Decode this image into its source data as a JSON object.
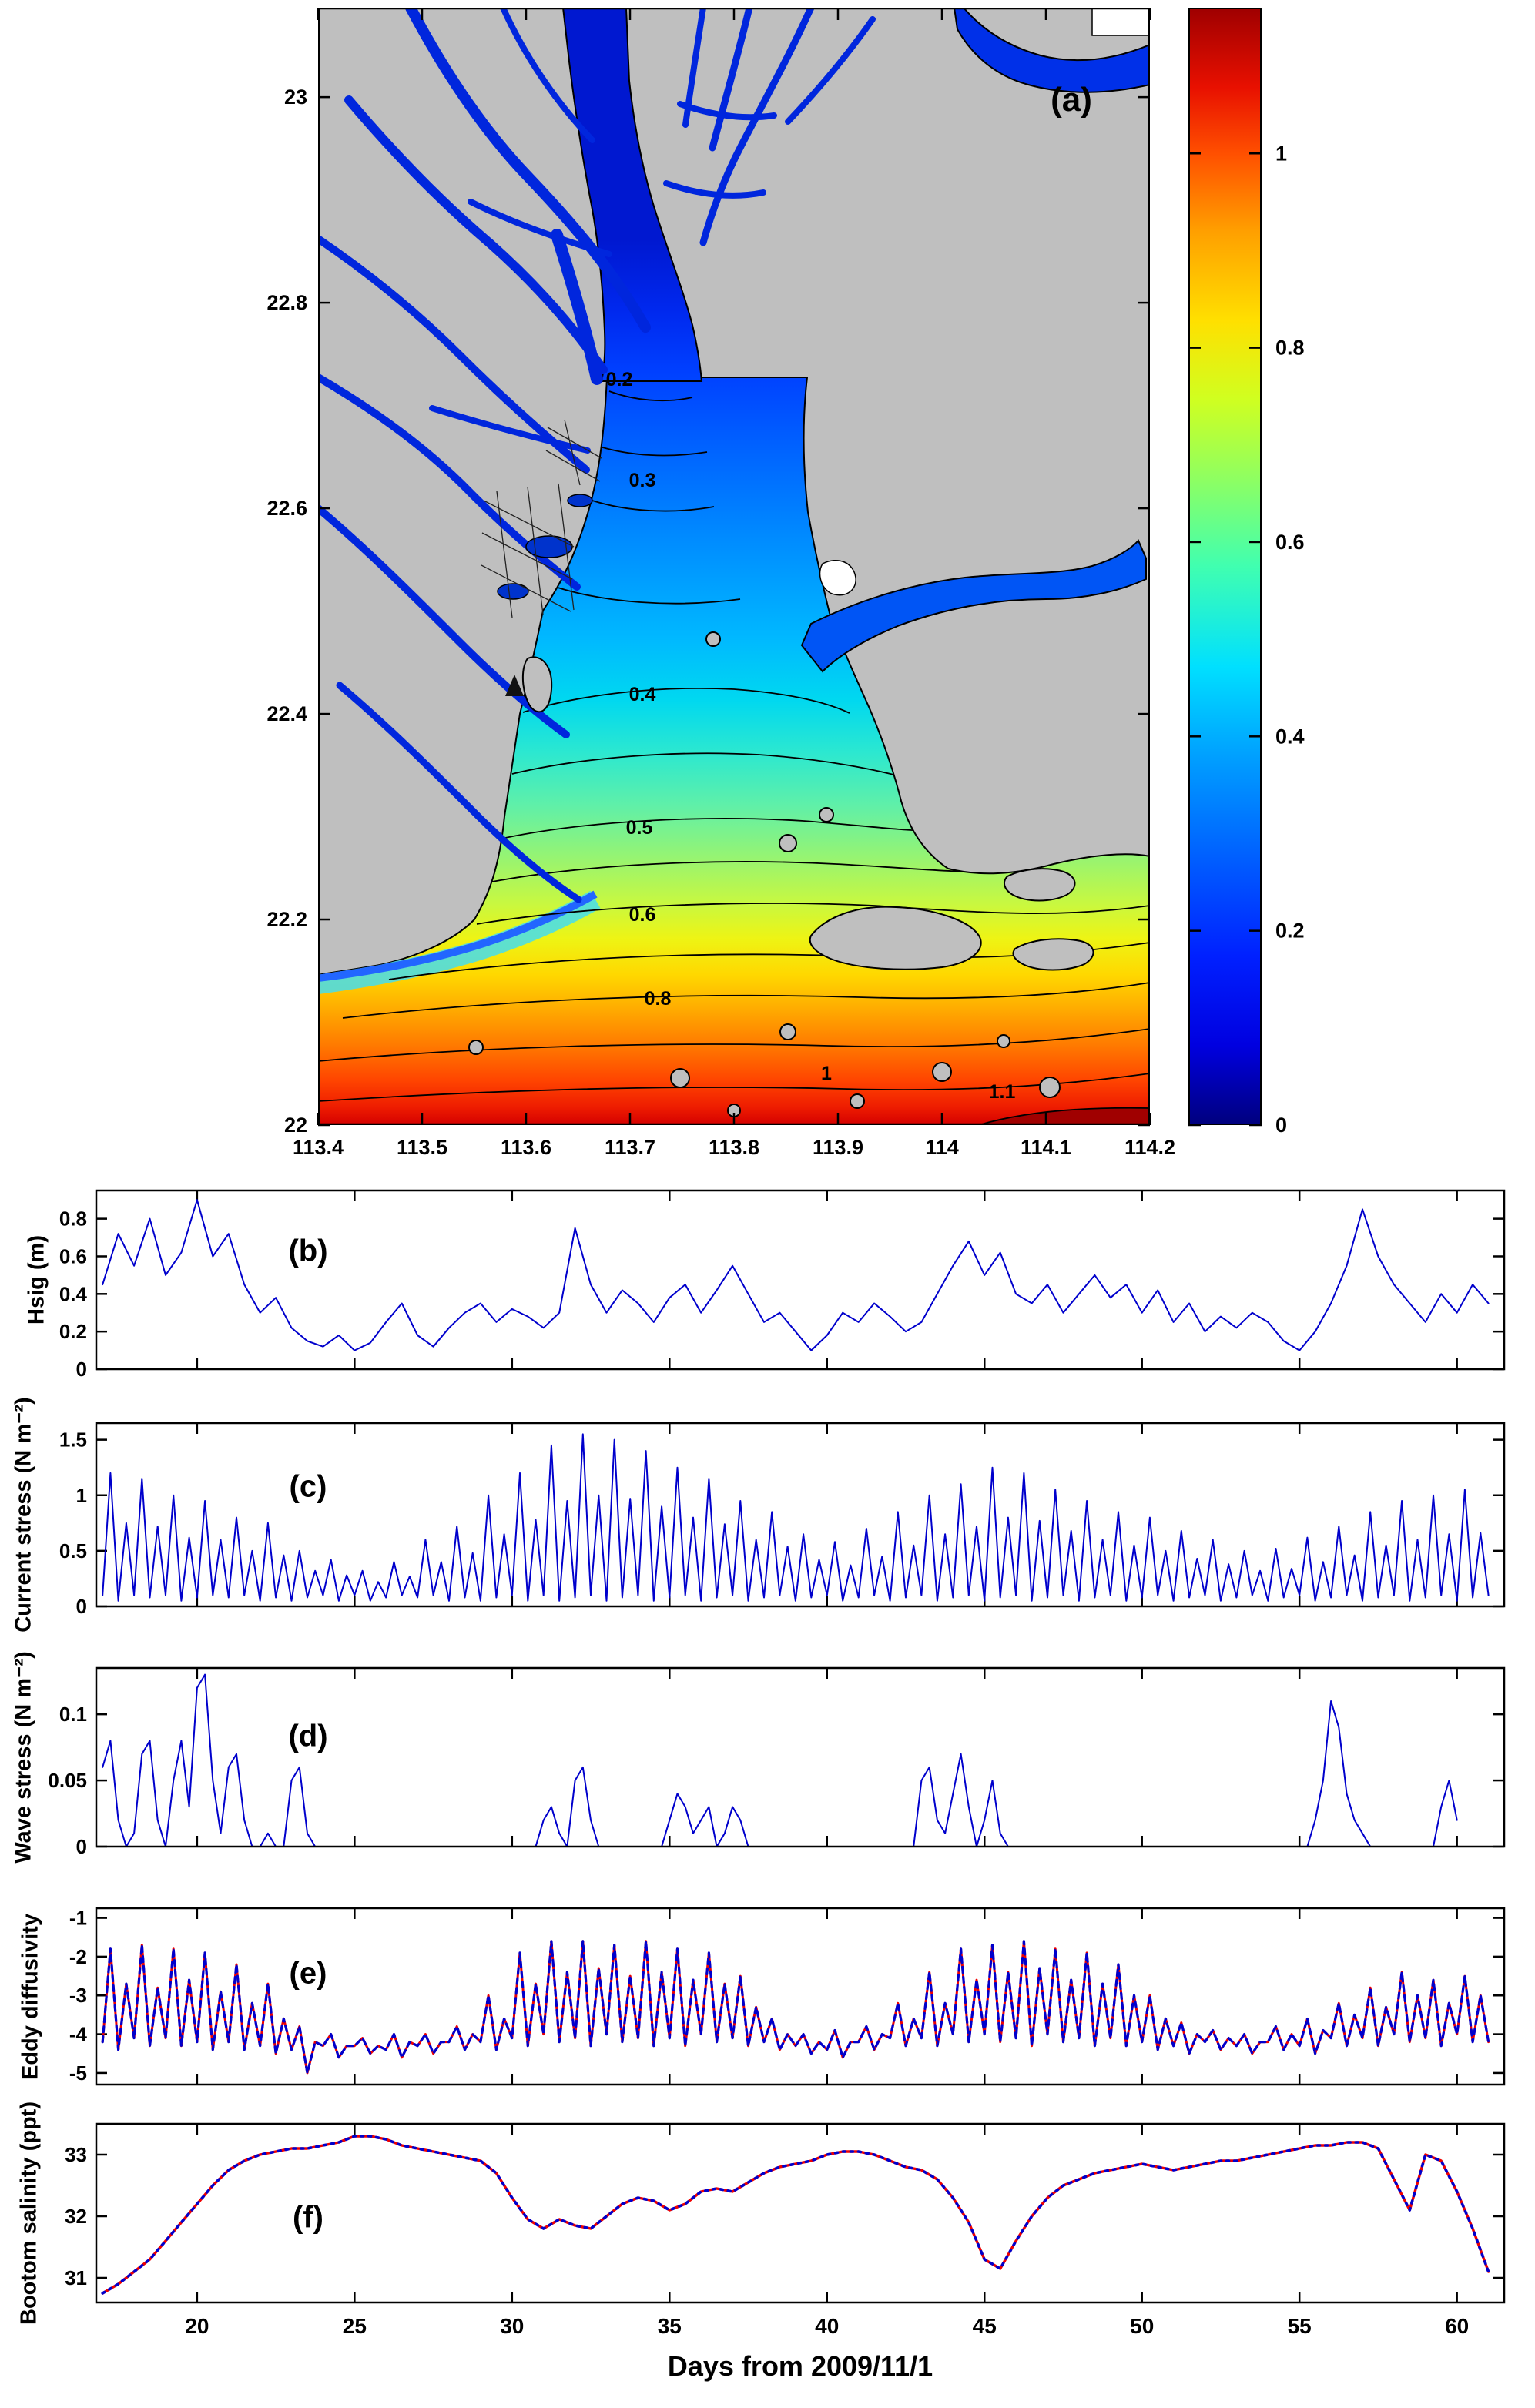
{
  "figure": {
    "xlabel": "Days from 2009/11/1",
    "land_color": "#bfbfbf",
    "contour_label_color": "#ff00ee",
    "line_blue": "#0000cc",
    "line_red": "#ee0000"
  },
  "chart_data": [
    {
      "id": "a",
      "type": "heatmap",
      "panel_label": "(a)",
      "description": "Map of Pearl River Estuary, filled contours of a 0-1.1 quantity (jet colormap), gray land, magenta contour labels",
      "xlim": [
        113.4,
        114.2
      ],
      "ylim": [
        22,
        23.087
      ],
      "xticks": [
        113.4,
        113.5,
        113.6,
        113.7,
        113.8,
        113.9,
        114,
        114.1,
        114.2
      ],
      "xtick_labels": [
        "113.4",
        "113.5",
        "113.6",
        "113.7",
        "113.8",
        "113.9",
        "114",
        "114.1",
        "114.2"
      ],
      "yticks": [
        22,
        22.2,
        22.4,
        22.6,
        22.8,
        23
      ],
      "ytick_labels": [
        "22",
        "22.2",
        "22.4",
        "22.6",
        "22.8",
        "23"
      ],
      "contour_labels": [
        {
          "value": "0.2",
          "x": 391,
          "y": 491
        },
        {
          "value": "0.3",
          "x": 421,
          "y": 622
        },
        {
          "value": "0.4",
          "x": 421,
          "y": 900
        },
        {
          "value": "0.5",
          "x": 417,
          "y": 1073
        },
        {
          "value": "0.6",
          "x": 421,
          "y": 1186
        },
        {
          "value": "0.8",
          "x": 441,
          "y": 1295
        },
        {
          "value": "1",
          "x": 660,
          "y": 1392
        },
        {
          "value": "1.1",
          "x": 888,
          "y": 1416
        }
      ],
      "colorbar": {
        "range": [
          0,
          1.15
        ],
        "ticks": [
          0,
          0.2,
          0.4,
          0.6,
          0.8,
          1
        ],
        "tick_labels": [
          "0",
          "0.2",
          "0.4",
          "0.6",
          "0.8",
          "1"
        ],
        "stops": [
          [
            "#00007f",
            0
          ],
          [
            "#0000e0",
            0.07
          ],
          [
            "#0020ff",
            0.15
          ],
          [
            "#0060ff",
            0.24
          ],
          [
            "#00a0ff",
            0.33
          ],
          [
            "#00e0ff",
            0.41
          ],
          [
            "#40ffb0",
            0.5
          ],
          [
            "#90ff60",
            0.58
          ],
          [
            "#d0ff20",
            0.65
          ],
          [
            "#ffe000",
            0.72
          ],
          [
            "#ffa000",
            0.8
          ],
          [
            "#ff5000",
            0.87
          ],
          [
            "#e81000",
            0.93
          ],
          [
            "#a00000",
            1
          ]
        ]
      }
    },
    {
      "id": "b",
      "type": "line",
      "panel_label": "(b)",
      "ylabel": "Hsig (m)",
      "xlim": [
        16.8,
        61.5
      ],
      "ylim": [
        0,
        0.95
      ],
      "yticks": [
        0,
        0.2,
        0.4,
        0.6,
        0.8
      ],
      "ytick_labels": [
        "0",
        "0.2",
        "0.4",
        "0.6",
        "0.8"
      ],
      "xticks": [
        20,
        25,
        30,
        35,
        40,
        45,
        50,
        55,
        60
      ],
      "show_xticklabels": false,
      "series": [
        {
          "name": "significant-wave-height",
          "color": "#0000cc",
          "width": 2,
          "dash": "",
          "x0": 17,
          "dx": 0.5,
          "values": [
            0.45,
            0.72,
            0.55,
            0.8,
            0.5,
            0.62,
            0.9,
            0.6,
            0.72,
            0.45,
            0.3,
            0.38,
            0.22,
            0.15,
            0.12,
            0.18,
            0.1,
            0.14,
            0.25,
            0.35,
            0.18,
            0.12,
            0.22,
            0.3,
            0.35,
            0.25,
            0.32,
            0.28,
            0.22,
            0.3,
            0.75,
            0.45,
            0.3,
            0.42,
            0.35,
            0.25,
            0.38,
            0.45,
            0.3,
            0.42,
            0.55,
            0.4,
            0.25,
            0.3,
            0.2,
            0.1,
            0.18,
            0.3,
            0.25,
            0.35,
            0.28,
            0.2,
            0.25,
            0.4,
            0.55,
            0.68,
            0.5,
            0.62,
            0.4,
            0.35,
            0.45,
            0.3,
            0.4,
            0.5,
            0.38,
            0.45,
            0.3,
            0.42,
            0.25,
            0.35,
            0.2,
            0.28,
            0.22,
            0.3,
            0.25,
            0.15,
            0.1,
            0.2,
            0.35,
            0.55,
            0.85,
            0.6,
            0.45,
            0.35,
            0.25,
            0.4,
            0.3,
            0.45,
            0.35
          ]
        }
      ]
    },
    {
      "id": "c",
      "type": "line",
      "panel_label": "(c)",
      "ylabel": "Current stress (N m⁻²)",
      "xlim": [
        16.8,
        61.5
      ],
      "ylim": [
        0,
        1.65
      ],
      "yticks": [
        0,
        0.5,
        1,
        1.5
      ],
      "ytick_labels": [
        "0",
        "0.5",
        "1",
        "1.5"
      ],
      "xticks": [
        20,
        25,
        30,
        35,
        40,
        45,
        50,
        55,
        60
      ],
      "show_xticklabels": false,
      "series": [
        {
          "name": "bottom-current-stress",
          "color": "#0000cc",
          "width": 2,
          "dash": "",
          "x0": 17,
          "dx": 0.25,
          "values": [
            0.1,
            1.2,
            0.05,
            0.75,
            0.1,
            1.15,
            0.08,
            0.72,
            0.1,
            1.0,
            0.05,
            0.62,
            0.08,
            0.95,
            0.1,
            0.6,
            0.08,
            0.8,
            0.1,
            0.5,
            0.05,
            0.75,
            0.08,
            0.46,
            0.05,
            0.5,
            0.08,
            0.32,
            0.1,
            0.42,
            0.05,
            0.28,
            0.1,
            0.32,
            0.05,
            0.22,
            0.08,
            0.4,
            0.1,
            0.27,
            0.08,
            0.6,
            0.1,
            0.4,
            0.05,
            0.72,
            0.08,
            0.48,
            0.05,
            1.0,
            0.08,
            0.65,
            0.1,
            1.2,
            0.05,
            0.78,
            0.1,
            1.45,
            0.05,
            0.95,
            0.08,
            1.55,
            0.1,
            1.0,
            0.05,
            1.5,
            0.08,
            0.97,
            0.1,
            1.4,
            0.05,
            0.9,
            0.08,
            1.25,
            0.1,
            0.8,
            0.05,
            1.15,
            0.08,
            0.74,
            0.1,
            0.95,
            0.05,
            0.6,
            0.08,
            0.85,
            0.1,
            0.54,
            0.05,
            0.65,
            0.08,
            0.42,
            0.1,
            0.58,
            0.05,
            0.37,
            0.08,
            0.7,
            0.1,
            0.45,
            0.05,
            0.85,
            0.08,
            0.55,
            0.1,
            1.0,
            0.05,
            0.65,
            0.08,
            1.1,
            0.1,
            0.72,
            0.05,
            1.25,
            0.08,
            0.8,
            0.1,
            1.2,
            0.05,
            0.77,
            0.08,
            1.05,
            0.1,
            0.68,
            0.05,
            0.95,
            0.08,
            0.6,
            0.1,
            0.85,
            0.05,
            0.55,
            0.08,
            0.8,
            0.1,
            0.5,
            0.05,
            0.68,
            0.08,
            0.43,
            0.1,
            0.6,
            0.05,
            0.38,
            0.08,
            0.5,
            0.1,
            0.32,
            0.05,
            0.52,
            0.08,
            0.34,
            0.1,
            0.62,
            0.05,
            0.4,
            0.08,
            0.72,
            0.1,
            0.46,
            0.05,
            0.85,
            0.08,
            0.55,
            0.1,
            0.95,
            0.05,
            0.6,
            0.08,
            1.0,
            0.1,
            0.65,
            0.05,
            1.05,
            0.08,
            0.66,
            0.1
          ]
        }
      ]
    },
    {
      "id": "d",
      "type": "line",
      "panel_label": "(d)",
      "ylabel": "Wave stress (N m⁻²)",
      "xlim": [
        16.8,
        61.5
      ],
      "ylim": [
        0,
        0.135
      ],
      "yticks": [
        0,
        0.05,
        0.1
      ],
      "ytick_labels": [
        "0",
        "0.05",
        "0.1"
      ],
      "xticks": [
        20,
        25,
        30,
        35,
        40,
        45,
        50,
        55,
        60
      ],
      "show_xticklabels": false,
      "series": [
        {
          "name": "wave-bottom-stress",
          "color": "#0000cc",
          "width": 2,
          "dash": "",
          "x0": 17,
          "dx": 0.25,
          "values": [
            0.06,
            0.08,
            0.02,
            0,
            0.01,
            0.07,
            0.08,
            0.02,
            0,
            0.05,
            0.08,
            0.03,
            0.12,
            0.13,
            0.05,
            0.01,
            0.06,
            0.07,
            0.02,
            0,
            0,
            0.01,
            0,
            0,
            0.05,
            0.06,
            0.01,
            0,
            0,
            0,
            0,
            0,
            0,
            0,
            0,
            0,
            0,
            0,
            0,
            0,
            0,
            0,
            0,
            0,
            0,
            0,
            0,
            0,
            0,
            0,
            0,
            0,
            0,
            0,
            0,
            0,
            0.02,
            0.03,
            0.01,
            0,
            0.05,
            0.06,
            0.02,
            0,
            0,
            0,
            0,
            0,
            0,
            0,
            0,
            0,
            0.02,
            0.04,
            0.03,
            0.01,
            0.02,
            0.03,
            0,
            0.01,
            0.03,
            0.02,
            0,
            0,
            0,
            0,
            0,
            0,
            0,
            0,
            0,
            0,
            0,
            0,
            0,
            0,
            0,
            0,
            0,
            0,
            0,
            0,
            0,
            0,
            0.05,
            0.06,
            0.02,
            0.01,
            0.04,
            0.07,
            0.03,
            0,
            0.02,
            0.05,
            0.01,
            0,
            0,
            0,
            0,
            0,
            0,
            0,
            0,
            0,
            0,
            0,
            0,
            0,
            0,
            0,
            0,
            0,
            0,
            0,
            0,
            0,
            0,
            0,
            0,
            0,
            0,
            0,
            0,
            0,
            0,
            0,
            0,
            0,
            0,
            0,
            0,
            0,
            0,
            0,
            0.02,
            0.05,
            0.11,
            0.09,
            0.04,
            0.02,
            0.01,
            0,
            0,
            0,
            0,
            0,
            0,
            0,
            0,
            0,
            0.03,
            0.05,
            0.02
          ]
        }
      ]
    },
    {
      "id": "e",
      "type": "line",
      "panel_label": "(e)",
      "ylabel": "Eddy diffusivity",
      "xlim": [
        16.8,
        61.5
      ],
      "ylim": [
        -5.3,
        -0.75
      ],
      "yticks": [
        -5,
        -4,
        -3,
        -2,
        -1
      ],
      "ytick_labels": [
        "-5",
        "-4",
        "-3",
        "-2",
        "-1"
      ],
      "xticks": [
        20,
        25,
        30,
        35,
        40,
        45,
        50,
        55,
        60
      ],
      "show_xticklabels": false,
      "series": [
        {
          "name": "eddy-diffusivity-red-solid",
          "color": "#ee0000",
          "width": 3,
          "dash": "",
          "x0": 17,
          "dx": 0.25,
          "values": [
            -4.2,
            -1.8,
            -4.4,
            -2.7,
            -4.1,
            -1.7,
            -4.3,
            -2.8,
            -4.1,
            -1.8,
            -4.3,
            -2.6,
            -4.2,
            -1.9,
            -4.4,
            -2.9,
            -4.2,
            -2.2,
            -4.4,
            -3.2,
            -4.3,
            -2.7,
            -4.5,
            -3.6,
            -4.4,
            -3.8,
            -5.0,
            -4.2,
            -4.3,
            -4.0,
            -4.6,
            -4.3,
            -4.3,
            -4.1,
            -4.5,
            -4.3,
            -4.4,
            -4.0,
            -4.6,
            -4.2,
            -4.3,
            -4.0,
            -4.5,
            -4.2,
            -4.2,
            -3.8,
            -4.4,
            -4.0,
            -4.2,
            -3.0,
            -4.4,
            -3.6,
            -4.1,
            -1.9,
            -4.3,
            -2.7,
            -4.0,
            -1.6,
            -4.2,
            -2.4,
            -4.1,
            -1.6,
            -4.3,
            -2.3,
            -4.0,
            -1.7,
            -4.2,
            -2.5,
            -4.1,
            -1.6,
            -4.3,
            -2.4,
            -4.1,
            -1.8,
            -4.3,
            -2.6,
            -4.0,
            -1.9,
            -4.2,
            -2.7,
            -4.1,
            -2.5,
            -4.3,
            -3.3,
            -4.2,
            -3.6,
            -4.4,
            -4.0,
            -4.3,
            -4.0,
            -4.5,
            -4.2,
            -4.4,
            -3.9,
            -4.6,
            -4.2,
            -4.2,
            -3.8,
            -4.4,
            -4.0,
            -4.1,
            -3.2,
            -4.3,
            -3.6,
            -4.1,
            -2.4,
            -4.3,
            -3.2,
            -4.0,
            -1.8,
            -4.2,
            -2.6,
            -4.0,
            -1.7,
            -4.2,
            -2.4,
            -4.1,
            -1.6,
            -4.3,
            -2.3,
            -4.0,
            -1.8,
            -4.2,
            -2.6,
            -4.1,
            -1.9,
            -4.3,
            -2.7,
            -4.1,
            -2.2,
            -4.3,
            -3.0,
            -4.2,
            -3.0,
            -4.4,
            -3.6,
            -4.3,
            -3.7,
            -4.5,
            -4.0,
            -4.2,
            -3.9,
            -4.4,
            -4.1,
            -4.3,
            -4.0,
            -4.5,
            -4.2,
            -4.2,
            -3.8,
            -4.4,
            -4.0,
            -4.3,
            -3.6,
            -4.5,
            -3.9,
            -4.1,
            -3.2,
            -4.3,
            -3.5,
            -4.1,
            -2.8,
            -4.3,
            -3.3,
            -4.0,
            -2.4,
            -4.2,
            -3.0,
            -4.1,
            -2.6,
            -4.3,
            -3.2,
            -4.0,
            -2.5,
            -4.2,
            -3.0,
            -4.2
          ]
        },
        {
          "name": "eddy-diffusivity-blue-dashed",
          "color": "#0000cc",
          "width": 3.2,
          "dash": "7 6",
          "x0": 17,
          "dx": 0.25,
          "same_as": 0
        }
      ]
    },
    {
      "id": "f",
      "type": "line",
      "panel_label": "(f)",
      "ylabel": "Bootom salinity (ppt)",
      "xlim": [
        16.8,
        61.5
      ],
      "ylim": [
        30.6,
        33.5
      ],
      "yticks": [
        31,
        32,
        33
      ],
      "ytick_labels": [
        "31",
        "32",
        "33"
      ],
      "xticks": [
        20,
        25,
        30,
        35,
        40,
        45,
        50,
        55,
        60
      ],
      "xtick_labels": [
        "20",
        "25",
        "30",
        "35",
        "40",
        "45",
        "50",
        "55",
        "60"
      ],
      "show_xticklabels": true,
      "series": [
        {
          "name": "bottom-salinity-red-solid",
          "color": "#ee0000",
          "width": 3.4,
          "dash": "",
          "x0": 17,
          "dx": 0.5,
          "values": [
            30.75,
            30.9,
            31.1,
            31.3,
            31.6,
            31.9,
            32.2,
            32.5,
            32.75,
            32.9,
            33.0,
            33.05,
            33.1,
            33.1,
            33.15,
            33.2,
            33.3,
            33.3,
            33.25,
            33.15,
            33.1,
            33.05,
            33.0,
            32.95,
            32.9,
            32.7,
            32.3,
            31.95,
            31.8,
            31.95,
            31.85,
            31.8,
            32.0,
            32.2,
            32.3,
            32.25,
            32.1,
            32.2,
            32.4,
            32.45,
            32.4,
            32.55,
            32.7,
            32.8,
            32.85,
            32.9,
            33.0,
            33.05,
            33.05,
            33.0,
            32.9,
            32.8,
            32.75,
            32.6,
            32.3,
            31.9,
            31.3,
            31.15,
            31.6,
            32.0,
            32.3,
            32.5,
            32.6,
            32.7,
            32.75,
            32.8,
            32.85,
            32.8,
            32.75,
            32.8,
            32.85,
            32.9,
            32.9,
            32.95,
            33.0,
            33.05,
            33.1,
            33.15,
            33.15,
            33.2,
            33.2,
            33.1,
            32.6,
            32.1,
            33.0,
            32.9,
            32.4,
            31.8,
            31.1
          ]
        },
        {
          "name": "bottom-salinity-blue-dotted",
          "color": "#0000cc",
          "width": 3.6,
          "dash": "3 7",
          "x0": 17,
          "dx": 0.5,
          "same_as": 0
        }
      ]
    }
  ]
}
